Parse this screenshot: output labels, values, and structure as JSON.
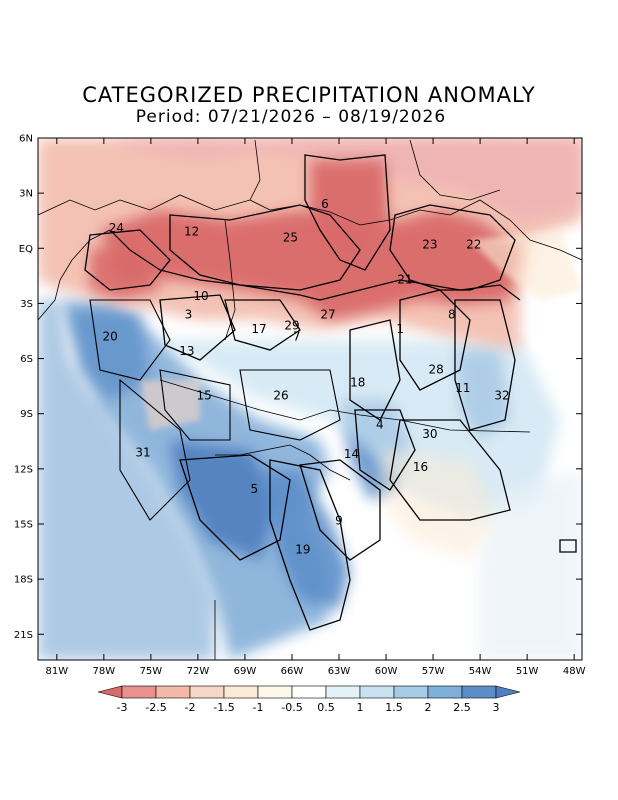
{
  "title": "CATEGORIZED PRECIPITATION ANOMALY",
  "subtitle": "Period: 07/21/2026 – 08/19/2026",
  "lat_ticks": [
    "6N",
    "3N",
    "EQ",
    "3S",
    "6S",
    "9S",
    "12S",
    "15S",
    "18S",
    "21S"
  ],
  "lon_ticks": [
    "81W",
    "78W",
    "75W",
    "72W",
    "69W",
    "66W",
    "63W",
    "60W",
    "57W",
    "54W",
    "51W",
    "48W"
  ],
  "colorbar": {
    "labels": [
      "-3",
      "-2.5",
      "-2",
      "-1.5",
      "-1",
      "-0.5",
      "0.5",
      "1",
      "1.5",
      "2",
      "2.5",
      "3"
    ],
    "colors": [
      "#d96a6a",
      "#e99090",
      "#f2b8a8",
      "#f6d6c4",
      "#fbebd6",
      "#fdf8ea",
      "#ffffff",
      "#e4f2f8",
      "#c8e2f1",
      "#a6cbe6",
      "#7eb0da",
      "#5b8ec9",
      "#4f7fbf"
    ]
  },
  "basins": [
    {
      "id": "1",
      "lon": -59.1,
      "lat": -4.4
    },
    {
      "id": "3",
      "lon": -72.6,
      "lat": -3.6
    },
    {
      "id": "4",
      "lon": -60.4,
      "lat": -9.6
    },
    {
      "id": "5",
      "lon": -68.4,
      "lat": -13.1
    },
    {
      "id": "6",
      "lon": -63.9,
      "lat": 2.4
    },
    {
      "id": "7",
      "lon": -65.7,
      "lat": -4.8
    },
    {
      "id": "8",
      "lon": -55.8,
      "lat": -3.6
    },
    {
      "id": "9",
      "lon": -63.0,
      "lat": -14.8
    },
    {
      "id": "10",
      "lon": -71.8,
      "lat": -2.6
    },
    {
      "id": "11",
      "lon": -55.1,
      "lat": -7.6
    },
    {
      "id": "12",
      "lon": -72.4,
      "lat": 0.9
    },
    {
      "id": "13",
      "lon": -72.7,
      "lat": -5.6
    },
    {
      "id": "14",
      "lon": -62.2,
      "lat": -11.2
    },
    {
      "id": "15",
      "lon": -71.6,
      "lat": -8.0
    },
    {
      "id": "16",
      "lon": -57.8,
      "lat": -11.9
    },
    {
      "id": "17",
      "lon": -68.1,
      "lat": -4.4
    },
    {
      "id": "18",
      "lon": -61.8,
      "lat": -7.3
    },
    {
      "id": "19",
      "lon": -65.3,
      "lat": -16.4
    },
    {
      "id": "20",
      "lon": -77.6,
      "lat": -4.8
    },
    {
      "id": "21",
      "lon": -58.8,
      "lat": -1.7
    },
    {
      "id": "22",
      "lon": -54.4,
      "lat": 0.2
    },
    {
      "id": "23",
      "lon": -57.2,
      "lat": 0.2
    },
    {
      "id": "24",
      "lon": -77.2,
      "lat": 1.1
    },
    {
      "id": "25",
      "lon": -66.1,
      "lat": 0.6
    },
    {
      "id": "26",
      "lon": -66.7,
      "lat": -8.0
    },
    {
      "id": "27",
      "lon": -63.7,
      "lat": -3.6
    },
    {
      "id": "28",
      "lon": -56.8,
      "lat": -6.6
    },
    {
      "id": "29",
      "lon": -66.0,
      "lat": -4.2
    },
    {
      "id": "30",
      "lon": -57.2,
      "lat": -10.1
    },
    {
      "id": "31",
      "lon": -75.5,
      "lat": -11.1
    },
    {
      "id": "32",
      "lon": -52.6,
      "lat": -8.0
    }
  ]
}
